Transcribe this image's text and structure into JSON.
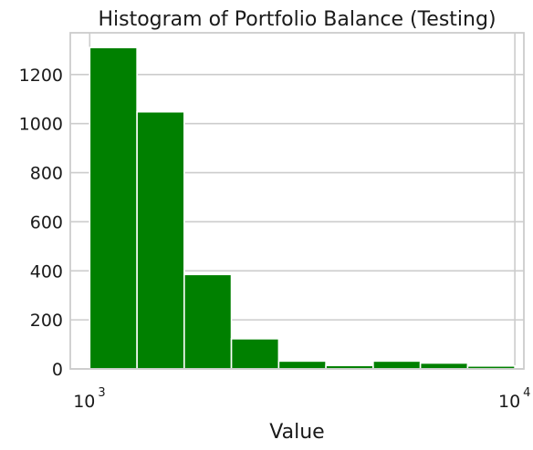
{
  "chart_data": {
    "type": "bar",
    "title": "Histogram of Portfolio Balance (Testing)",
    "xlabel": "Value",
    "ylabel": "",
    "x_scale": "log",
    "xlim": [
      900,
      10500
    ],
    "ylim": [
      0,
      1370
    ],
    "grid": true,
    "bar_color": "#008000",
    "grid_color": "#cccccc",
    "yticks": [
      0,
      200,
      400,
      600,
      800,
      1000,
      1200
    ],
    "xticks": [
      {
        "value": 1000,
        "base": "10",
        "exp": "3"
      },
      {
        "value": 10000,
        "base": "10",
        "exp": "4"
      }
    ],
    "bins": [
      {
        "x0": 1000,
        "x1": 1292,
        "count": 1310
      },
      {
        "x0": 1292,
        "x1": 1668,
        "count": 1048
      },
      {
        "x0": 1668,
        "x1": 2154,
        "count": 385
      },
      {
        "x0": 2154,
        "x1": 2783,
        "count": 123
      },
      {
        "x0": 2783,
        "x1": 3594,
        "count": 32
      },
      {
        "x0": 3594,
        "x1": 4642,
        "count": 14
      },
      {
        "x0": 4642,
        "x1": 5995,
        "count": 32
      },
      {
        "x0": 5995,
        "x1": 7743,
        "count": 24
      },
      {
        "x0": 7743,
        "x1": 10000,
        "count": 12
      }
    ]
  }
}
